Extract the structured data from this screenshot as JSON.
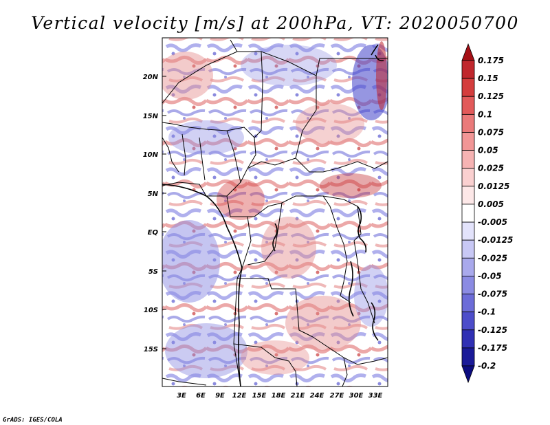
{
  "title": "Vertical velocity [m/s] at 200hPa, VT: 2020050700",
  "credit": "GrADS: IGES/COLA",
  "lat_labels": [
    "20N",
    "15N",
    "10N",
    "5N",
    "EQ",
    "5S",
    "10S",
    "15S"
  ],
  "lon_labels": [
    "3E",
    "6E",
    "9E",
    "12E",
    "15E",
    "18E",
    "21E",
    "24E",
    "27E",
    "30E",
    "33E"
  ],
  "colorbar": {
    "levels": [
      "0.175",
      "0.15",
      "0.125",
      "0.1",
      "0.075",
      "0.05",
      "0.025",
      "0.0125",
      "0.005",
      "-0.005",
      "-0.0125",
      "-0.025",
      "-0.05",
      "-0.075",
      "-0.1",
      "-0.125",
      "-0.175",
      "-0.2"
    ],
    "colors": [
      "#a50f15",
      "#c0272d",
      "#d43d3d",
      "#e25a5a",
      "#ea7a7a",
      "#f19696",
      "#f6b3b3",
      "#fad0d0",
      "#fde8e8",
      "#ffffff",
      "#e3e3fb",
      "#c8c8f5",
      "#a9a9ec",
      "#8b8be3",
      "#6c6cd8",
      "#4d4dca",
      "#3030b4",
      "#1a1a98",
      "#0c0c80"
    ]
  },
  "map": {
    "background": "#ffffff",
    "positive_color": "#e08a8a",
    "negative_color": "#8a8ae0"
  }
}
